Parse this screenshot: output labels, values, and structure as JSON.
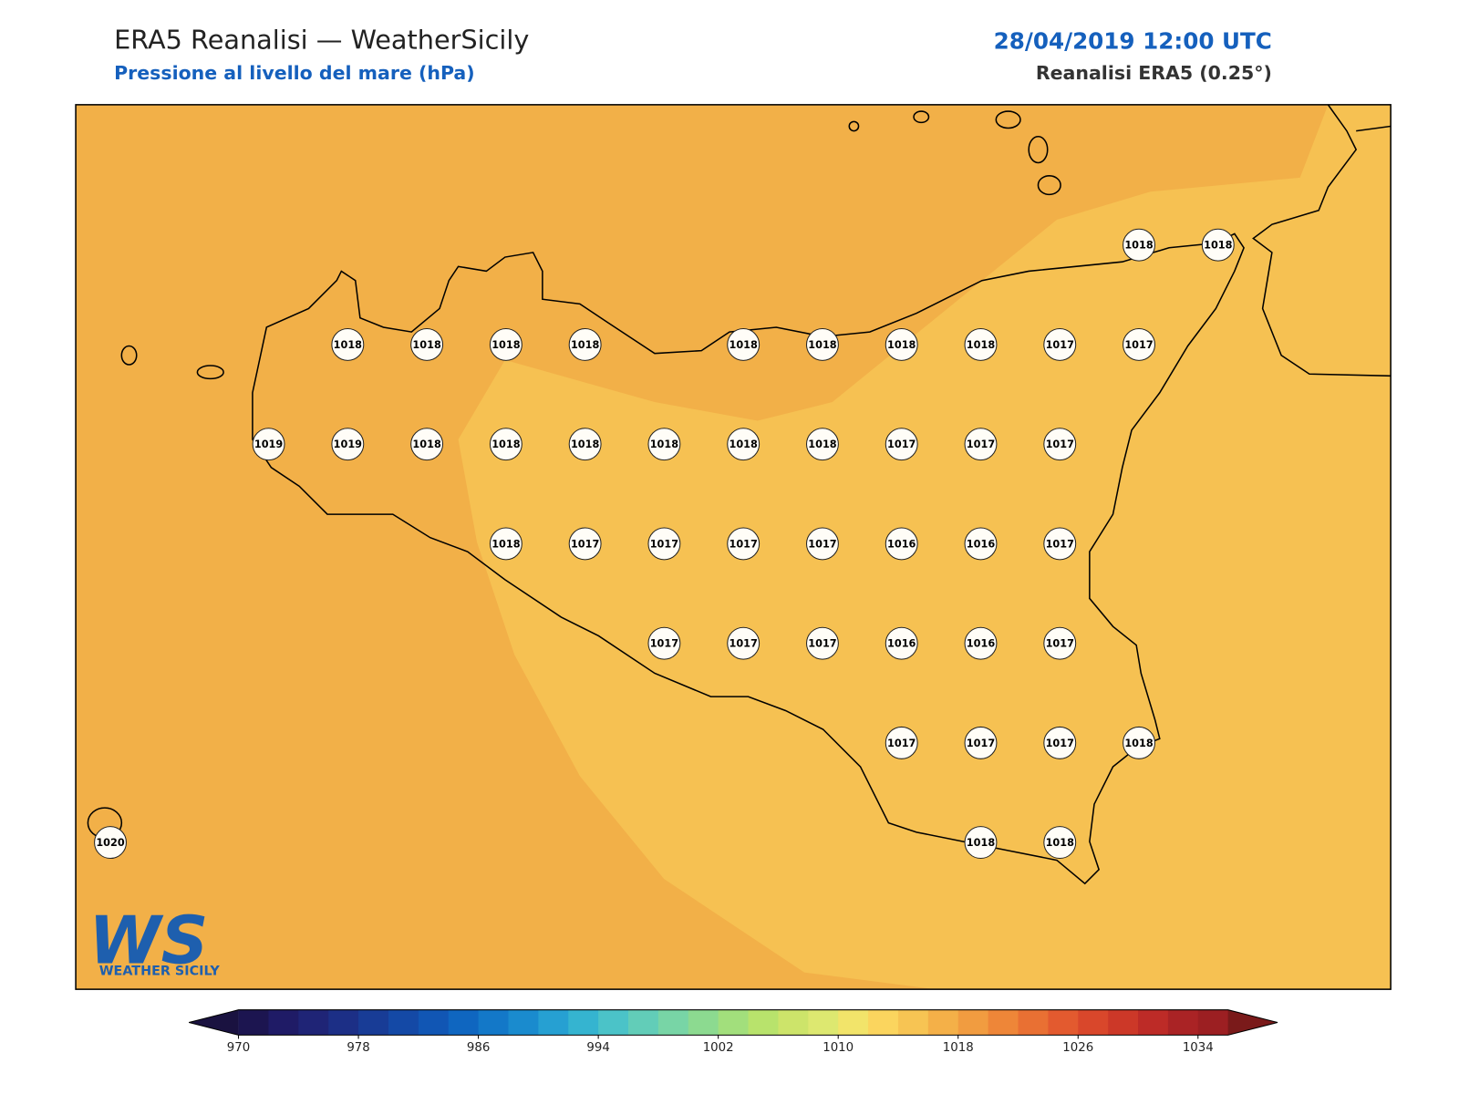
{
  "header": {
    "title": "ERA5 Reanalisi — WeatherSicily",
    "subtitle": "Pressione al livello del mare (hPa)",
    "date": "28/04/2019 12:00 UTC",
    "source": "Reanalisi ERA5 (0.25°)"
  },
  "logo": {
    "mark": "WS",
    "name": "WEATHER SICILY"
  },
  "map": {
    "type": "station-grid",
    "rows": [
      [
        null,
        null,
        null,
        null,
        null,
        null,
        null,
        null,
        null,
        null,
        null,
        null,
        null,
        1018,
        1018
      ],
      [
        null,
        null,
        null,
        1018,
        1018,
        1018,
        1018,
        null,
        1018,
        1018,
        1018,
        1018,
        1017,
        1017,
        null
      ],
      [
        null,
        null,
        1019,
        1019,
        1018,
        1018,
        1018,
        1018,
        1018,
        1018,
        1017,
        1017,
        1017,
        null,
        null
      ],
      [
        null,
        null,
        null,
        null,
        null,
        1018,
        1017,
        1017,
        1017,
        1017,
        1016,
        1016,
        1017,
        null,
        null
      ],
      [
        null,
        null,
        null,
        null,
        null,
        null,
        null,
        1017,
        1017,
        1017,
        1016,
        1016,
        1017,
        null,
        null
      ],
      [
        null,
        null,
        null,
        null,
        null,
        null,
        null,
        null,
        null,
        null,
        1017,
        1017,
        1017,
        1018,
        null
      ],
      [
        1020,
        null,
        null,
        null,
        null,
        null,
        null,
        null,
        null,
        null,
        null,
        1018,
        1018,
        null,
        null
      ]
    ]
  },
  "colorbar": {
    "lim": [
      970,
      1036
    ],
    "ticks": [
      970,
      978,
      986,
      994,
      1002,
      1010,
      1018,
      1026,
      1034
    ],
    "under_color": "#1a1240",
    "over_color": "#7a1a1a",
    "colors": [
      "#1c1550",
      "#1f1b66",
      "#1f2476",
      "#1c2f86",
      "#183c96",
      "#1449a6",
      "#1156b4",
      "#0f66c0",
      "#1378c8",
      "#1a8bce",
      "#26a0d2",
      "#35b4d0",
      "#4bc3c8",
      "#62cdb8",
      "#78d5a6",
      "#8cda90",
      "#a2df7c",
      "#b8e36c",
      "#cde46a",
      "#dde870",
      "#f2e46a",
      "#fbd55e",
      "#f7c453",
      "#f4b048",
      "#f19c40",
      "#ee8638",
      "#e97033",
      "#e35a2f",
      "#d9472b",
      "#cc3828",
      "#bd2b27",
      "#aa2325",
      "#9c1f22"
    ]
  }
}
